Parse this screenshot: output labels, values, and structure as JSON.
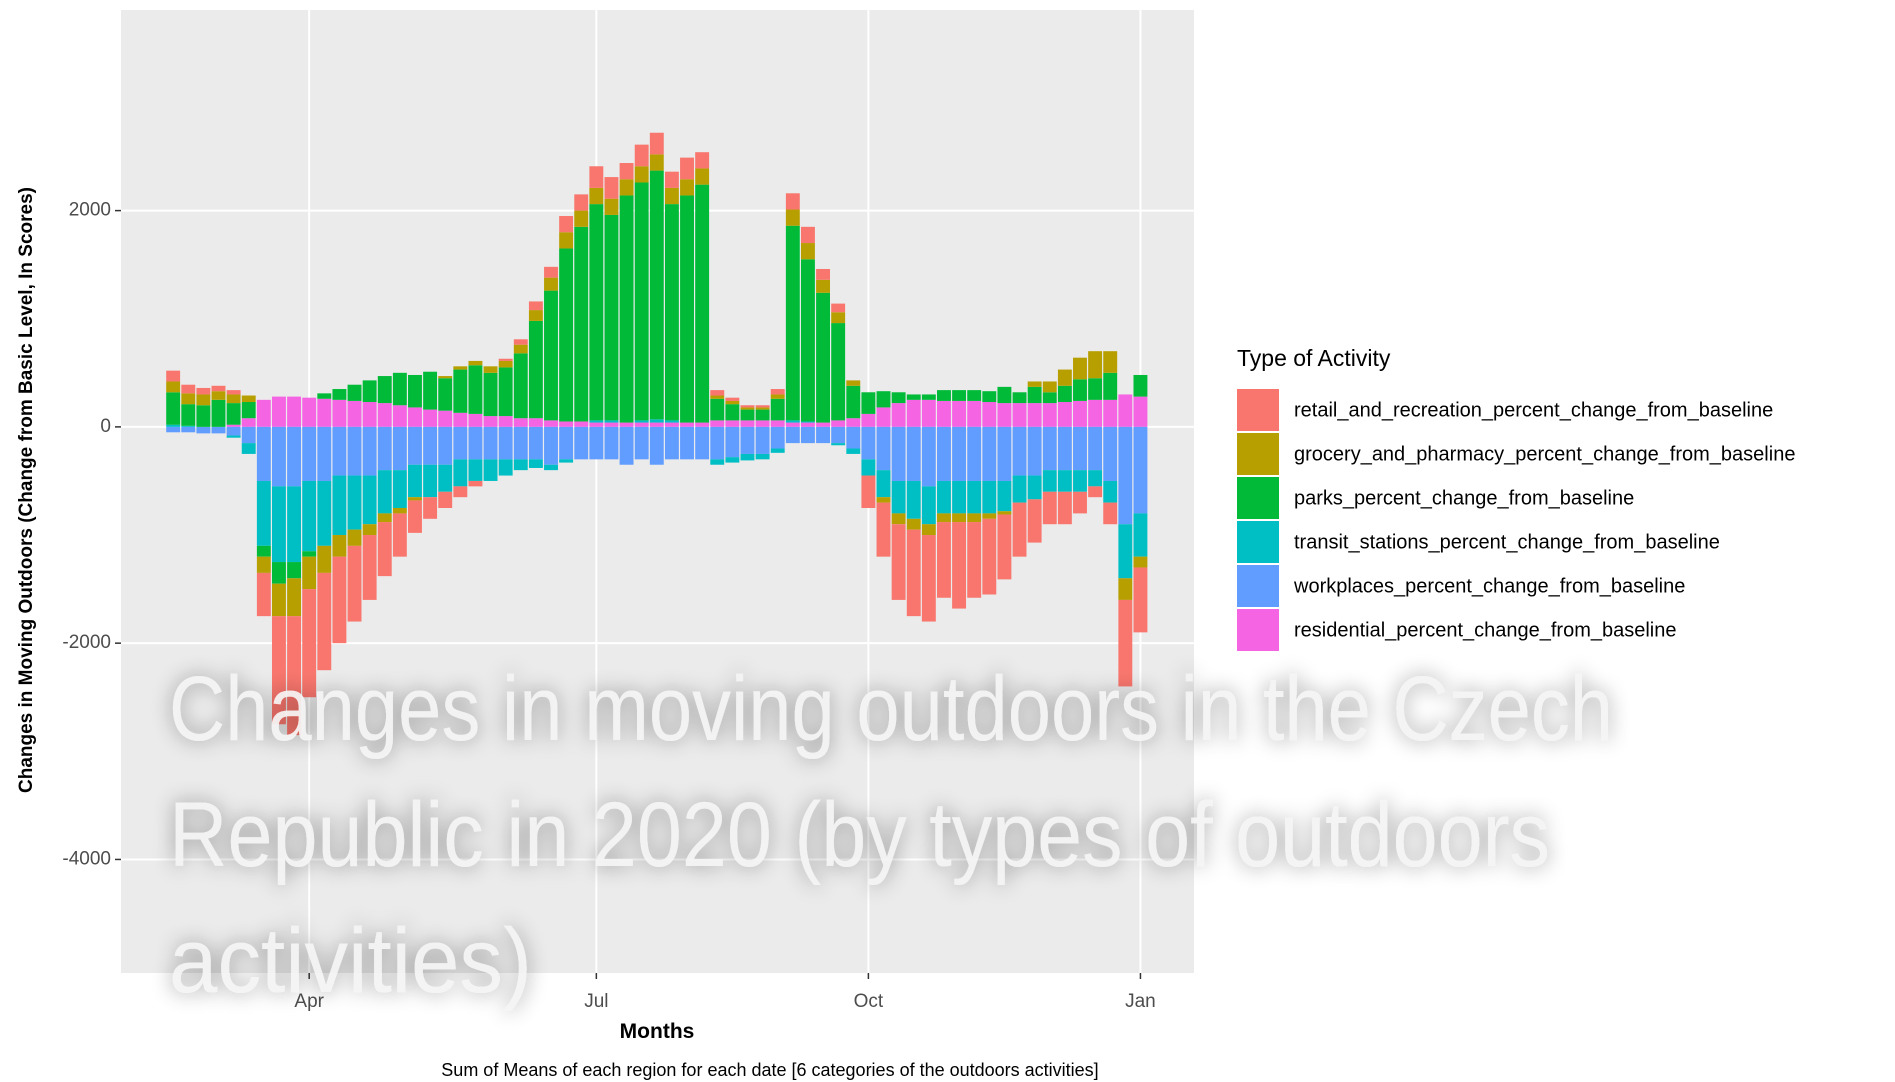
{
  "chart_data": {
    "type": "stacked_bar",
    "overlay_title": [
      "Changes in moving outdoors in the Czech",
      "Republic in 2020 (by types of outdoors",
      "activities)"
    ],
    "caption": "Sum of Means of each region for each date [6 categories of the outdoors activities]",
    "x_label": "Months",
    "y_label": "Changes in Moving Outdoors (Change from Basic Level, In Scores)",
    "legend_title": "Type of Activity",
    "categories": [
      null,
      null,
      null,
      null,
      null,
      null,
      null,
      null,
      null,
      "Apr",
      null,
      null,
      null,
      null,
      null,
      null,
      null,
      null,
      null,
      null,
      null,
      null,
      null,
      null,
      null,
      null,
      null,
      null,
      "Jul",
      null,
      null,
      null,
      null,
      null,
      null,
      null,
      null,
      null,
      null,
      null,
      null,
      null,
      null,
      null,
      null,
      null,
      "Oct",
      null,
      null,
      null,
      null,
      null,
      null,
      null,
      null,
      null,
      null,
      null,
      null,
      null,
      null,
      null,
      null,
      null,
      "Jan"
    ],
    "ylim": [
      -5050,
      3855
    ],
    "yticks": [
      -4000,
      -2000,
      0,
      2000
    ],
    "grid": true,
    "series": [
      {
        "name": "retail_and_recreation_percent_change_from_baseline",
        "color": "#F8766D",
        "values": [
          100,
          80,
          60,
          50,
          40,
          0,
          -400,
          -1000,
          -1100,
          -1000,
          -900,
          -800,
          -700,
          -600,
          -500,
          -400,
          -300,
          -200,
          -150,
          -100,
          -50,
          0,
          20,
          50,
          80,
          100,
          150,
          150,
          200,
          200,
          150,
          200,
          200,
          150,
          200,
          150,
          50,
          30,
          20,
          20,
          50,
          150,
          150,
          100,
          80,
          0,
          -300,
          -500,
          -700,
          -800,
          -800,
          -700,
          -800,
          -700,
          -700,
          -600,
          -500,
          -400,
          -300,
          -300,
          -200,
          -100,
          -200,
          -800,
          -600
        ]
      },
      {
        "name": "grocery_and_pharmacy_percent_change_from_baseline",
        "color": "#B79F00",
        "values": [
          100,
          100,
          100,
          80,
          80,
          60,
          -150,
          -300,
          -350,
          -300,
          -250,
          -200,
          -150,
          -100,
          -80,
          -50,
          -30,
          0,
          20,
          30,
          40,
          60,
          60,
          80,
          100,
          120,
          150,
          150,
          150,
          150,
          150,
          150,
          150,
          150,
          150,
          150,
          30,
          30,
          20,
          20,
          40,
          150,
          150,
          120,
          100,
          50,
          0,
          -50,
          -100,
          -100,
          -100,
          -80,
          -80,
          -80,
          -50,
          -30,
          0,
          50,
          100,
          150,
          200,
          250,
          200,
          -200,
          -100
        ]
      },
      {
        "name": "parks_percent_change_from_baseline",
        "color": "#00BA38",
        "values": [
          300,
          200,
          200,
          250,
          200,
          150,
          -100,
          -200,
          -150,
          -50,
          50,
          100,
          150,
          200,
          250,
          300,
          300,
          350,
          300,
          400,
          450,
          400,
          450,
          600,
          900,
          1200,
          1600,
          1800,
          2000,
          1900,
          2100,
          2200,
          2300,
          2000,
          2100,
          2200,
          200,
          150,
          100,
          100,
          200,
          1800,
          1500,
          1200,
          900,
          300,
          200,
          150,
          100,
          50,
          50,
          100,
          100,
          100,
          100,
          150,
          100,
          150,
          100,
          150,
          200,
          200,
          250,
          0,
          200
        ]
      },
      {
        "name": "transit_stations_percent_change_from_baseline",
        "color": "#00BFC4",
        "values": [
          20,
          10,
          0,
          0,
          -20,
          -100,
          -600,
          -700,
          -700,
          -650,
          -600,
          -550,
          -500,
          -450,
          -400,
          -350,
          -300,
          -300,
          -250,
          -250,
          -200,
          -200,
          -150,
          -100,
          -80,
          -50,
          -30,
          0,
          20,
          20,
          0,
          20,
          30,
          20,
          0,
          0,
          -50,
          -50,
          -60,
          -50,
          -40,
          20,
          10,
          0,
          -20,
          -50,
          -150,
          -250,
          -300,
          -350,
          -350,
          -300,
          -300,
          -300,
          -300,
          -280,
          -250,
          -220,
          -200,
          -200,
          -200,
          -150,
          -200,
          -500,
          -400
        ]
      },
      {
        "name": "workplaces_percent_change_from_baseline",
        "color": "#619CFF",
        "values": [
          -50,
          -50,
          -60,
          -60,
          -80,
          -150,
          -500,
          -550,
          -550,
          -500,
          -500,
          -450,
          -450,
          -450,
          -400,
          -400,
          -350,
          -350,
          -350,
          -300,
          -300,
          -300,
          -300,
          -300,
          -300,
          -350,
          -300,
          -300,
          -300,
          -300,
          -350,
          -300,
          -350,
          -300,
          -300,
          -300,
          -300,
          -280,
          -250,
          -250,
          -200,
          -150,
          -150,
          -150,
          -150,
          -200,
          -300,
          -400,
          -500,
          -500,
          -550,
          -500,
          -500,
          -500,
          -500,
          -500,
          -450,
          -450,
          -400,
          -400,
          -400,
          -400,
          -500,
          -900,
          -800
        ]
      },
      {
        "name": "residential_percent_change_from_baseline",
        "color": "#F564E3",
        "values": [
          0,
          0,
          0,
          0,
          20,
          80,
          250,
          280,
          280,
          270,
          260,
          250,
          240,
          230,
          220,
          200,
          180,
          160,
          150,
          130,
          120,
          100,
          100,
          80,
          80,
          60,
          50,
          50,
          40,
          40,
          40,
          40,
          40,
          40,
          40,
          40,
          60,
          60,
          60,
          60,
          60,
          40,
          40,
          40,
          60,
          80,
          120,
          180,
          220,
          250,
          250,
          240,
          240,
          240,
          230,
          220,
          220,
          220,
          220,
          230,
          240,
          250,
          250,
          300,
          280
        ]
      }
    ]
  }
}
